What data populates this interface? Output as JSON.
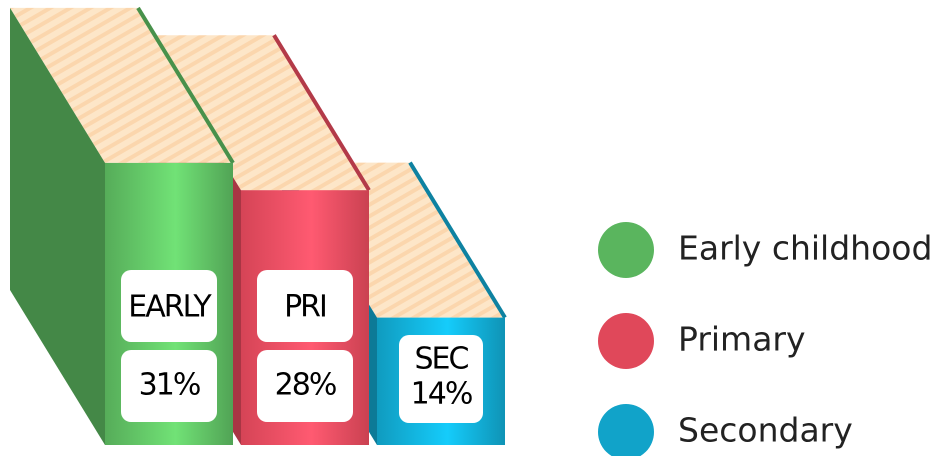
{
  "chart_data": {
    "type": "bar",
    "categories": [
      "EARLY",
      "PRI",
      "SEC"
    ],
    "values": [
      31,
      28,
      14
    ],
    "value_labels": [
      "31%",
      "28%",
      "14%"
    ],
    "colors": [
      "#5ab55e",
      "#e0485a",
      "#11a3c9"
    ],
    "legend": [
      "Early childhood",
      "Primary",
      "Secondary"
    ]
  }
}
